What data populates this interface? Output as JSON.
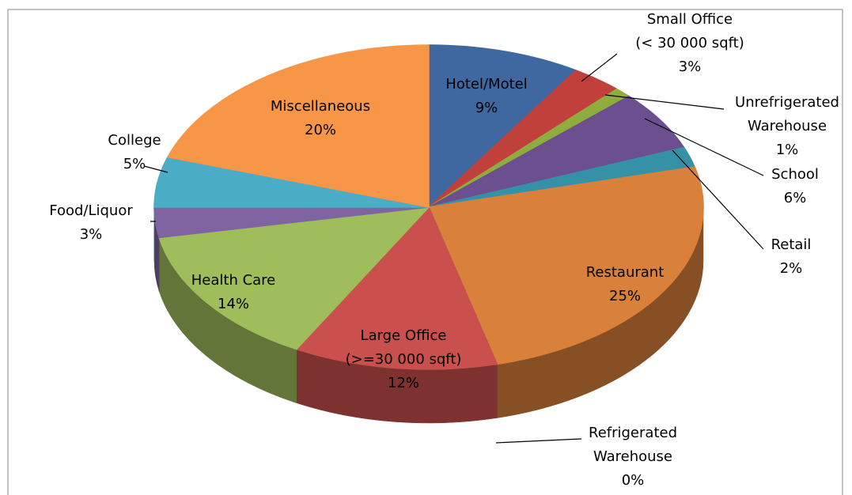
{
  "chart_data": {
    "type": "pie3d",
    "categories": [
      "Hotel/Motel",
      "Small Office\n(< 30 000 sqft)",
      "Unrefrigerated\nWarehouse",
      "School",
      "Retail",
      "Restaurant",
      "Refrigerated\nWarehouse",
      "Large Office\n(>=30 000 sqft)",
      "Health Care",
      "Food/Liquor",
      "College",
      "Miscellaneous"
    ],
    "values": [
      9,
      3,
      1,
      6,
      2,
      25,
      0,
      12,
      14,
      3,
      5,
      20
    ],
    "value_labels": [
      "9%",
      "3%",
      "1%",
      "6%",
      "2%",
      "25%",
      "0%",
      "12%",
      "14%",
      "3%",
      "5%",
      "20%"
    ],
    "colors": [
      "#3f67a0",
      "#c0413c",
      "#8fad3f",
      "#6c4f8f",
      "#3592a6",
      "#d9803a",
      "#4f86c6",
      "#c9504d",
      "#9fbd5a",
      "#8064a2",
      "#4bacc6",
      "#f79646"
    ]
  }
}
